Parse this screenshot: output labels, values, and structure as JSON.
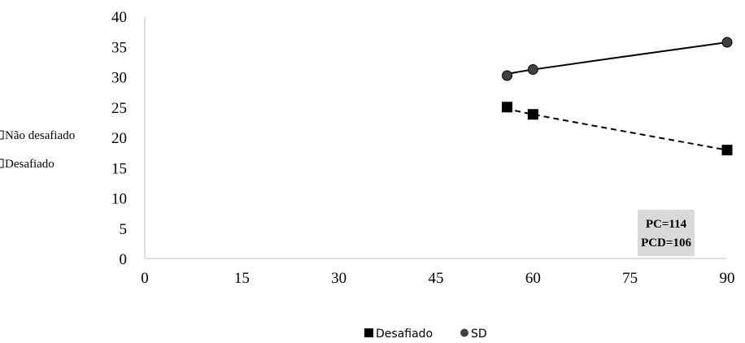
{
  "chart_data": {
    "type": "line",
    "title": "",
    "xlabel": "",
    "ylabel": "",
    "xlim": [
      0,
      90
    ],
    "ylim": [
      0,
      40
    ],
    "x_ticks": [
      "0",
      "15",
      "30",
      "45",
      "60",
      "75",
      "90"
    ],
    "y_ticks": [
      "0",
      "5",
      "10",
      "15",
      "20",
      "25",
      "30",
      "35",
      "40"
    ],
    "series": [
      {
        "name": "Desafiado",
        "marker": "square",
        "line_style": "dashed",
        "color": "#000000",
        "x": [
          56,
          60,
          90
        ],
        "y": [
          25.0,
          23.8,
          17.9
        ]
      },
      {
        "name": "SD",
        "marker": "circle",
        "line_style": "solid",
        "color": "#000000",
        "x": [
          56,
          60,
          90
        ],
        "y": [
          30.2,
          31.2,
          35.7
        ]
      }
    ],
    "side_labels": [
      "Não desafiado",
      "Desafiado"
    ],
    "annotation": [
      "PC=114",
      "PCD=106"
    ],
    "annotation_bg": "#d9d9d9",
    "legend_position": "bottom",
    "grid": false
  }
}
